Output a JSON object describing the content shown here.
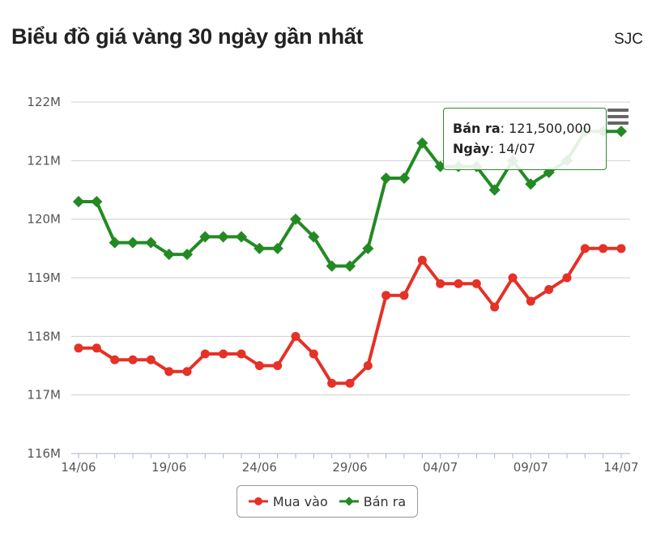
{
  "header": {
    "title": "Biểu đồ giá vàng 30 ngày gần nhất",
    "brand": "SJC"
  },
  "colors": {
    "buy": "#e53126",
    "sell": "#238a23",
    "grid": "#cfcfcf",
    "axis": "#aab4c8"
  },
  "tooltip": {
    "series_label": "Bán ra",
    "value": "121,500,000",
    "date_label": "Ngày",
    "date": "14/07"
  },
  "menu": {
    "icon": "hamburger-menu-icon"
  },
  "chart_data": {
    "type": "line",
    "title": "",
    "xlabel": "",
    "ylabel": "",
    "ylim": [
      116000000,
      122000000
    ],
    "yticks": [
      {
        "value": 116000000,
        "label": "116M"
      },
      {
        "value": 117000000,
        "label": "117M"
      },
      {
        "value": 118000000,
        "label": "118M"
      },
      {
        "value": 119000000,
        "label": "119M"
      },
      {
        "value": 120000000,
        "label": "120M"
      },
      {
        "value": 121000000,
        "label": "121M"
      },
      {
        "value": 122000000,
        "label": "122M"
      }
    ],
    "x": [
      "14/06",
      "15/06",
      "16/06",
      "17/06",
      "18/06",
      "19/06",
      "20/06",
      "21/06",
      "22/06",
      "23/06",
      "24/06",
      "25/06",
      "26/06",
      "27/06",
      "28/06",
      "29/06",
      "30/06",
      "01/07",
      "02/07",
      "03/07",
      "04/07",
      "05/07",
      "06/07",
      "07/07",
      "08/07",
      "09/07",
      "10/07",
      "11/07",
      "12/07",
      "13/07",
      "14/07"
    ],
    "xtick_labels": [
      "14/06",
      "19/06",
      "24/06",
      "29/06",
      "04/07",
      "09/07",
      "14/07"
    ],
    "grid": true,
    "legend": "bottom-center",
    "series": [
      {
        "name": "Mua vào",
        "values": [
          117800000,
          117800000,
          117600000,
          117600000,
          117600000,
          117400000,
          117400000,
          117700000,
          117700000,
          117700000,
          117500000,
          117500000,
          118000000,
          117700000,
          117200000,
          117200000,
          117500000,
          118700000,
          118700000,
          119300000,
          118900000,
          118900000,
          118900000,
          118500000,
          119000000,
          118600000,
          118800000,
          119000000,
          119500000,
          119500000,
          119500000
        ]
      },
      {
        "name": "Bán ra",
        "values": [
          120300000,
          120300000,
          119600000,
          119600000,
          119600000,
          119400000,
          119400000,
          119700000,
          119700000,
          119700000,
          119500000,
          119500000,
          120000000,
          119700000,
          119200000,
          119200000,
          119500000,
          120700000,
          120700000,
          121300000,
          120900000,
          120900000,
          120900000,
          120500000,
          121000000,
          120600000,
          120800000,
          121000000,
          121500000,
          121500000,
          121500000
        ]
      }
    ]
  },
  "legend": {
    "items": [
      {
        "label": "Mua vào"
      },
      {
        "label": "Bán ra"
      }
    ]
  }
}
